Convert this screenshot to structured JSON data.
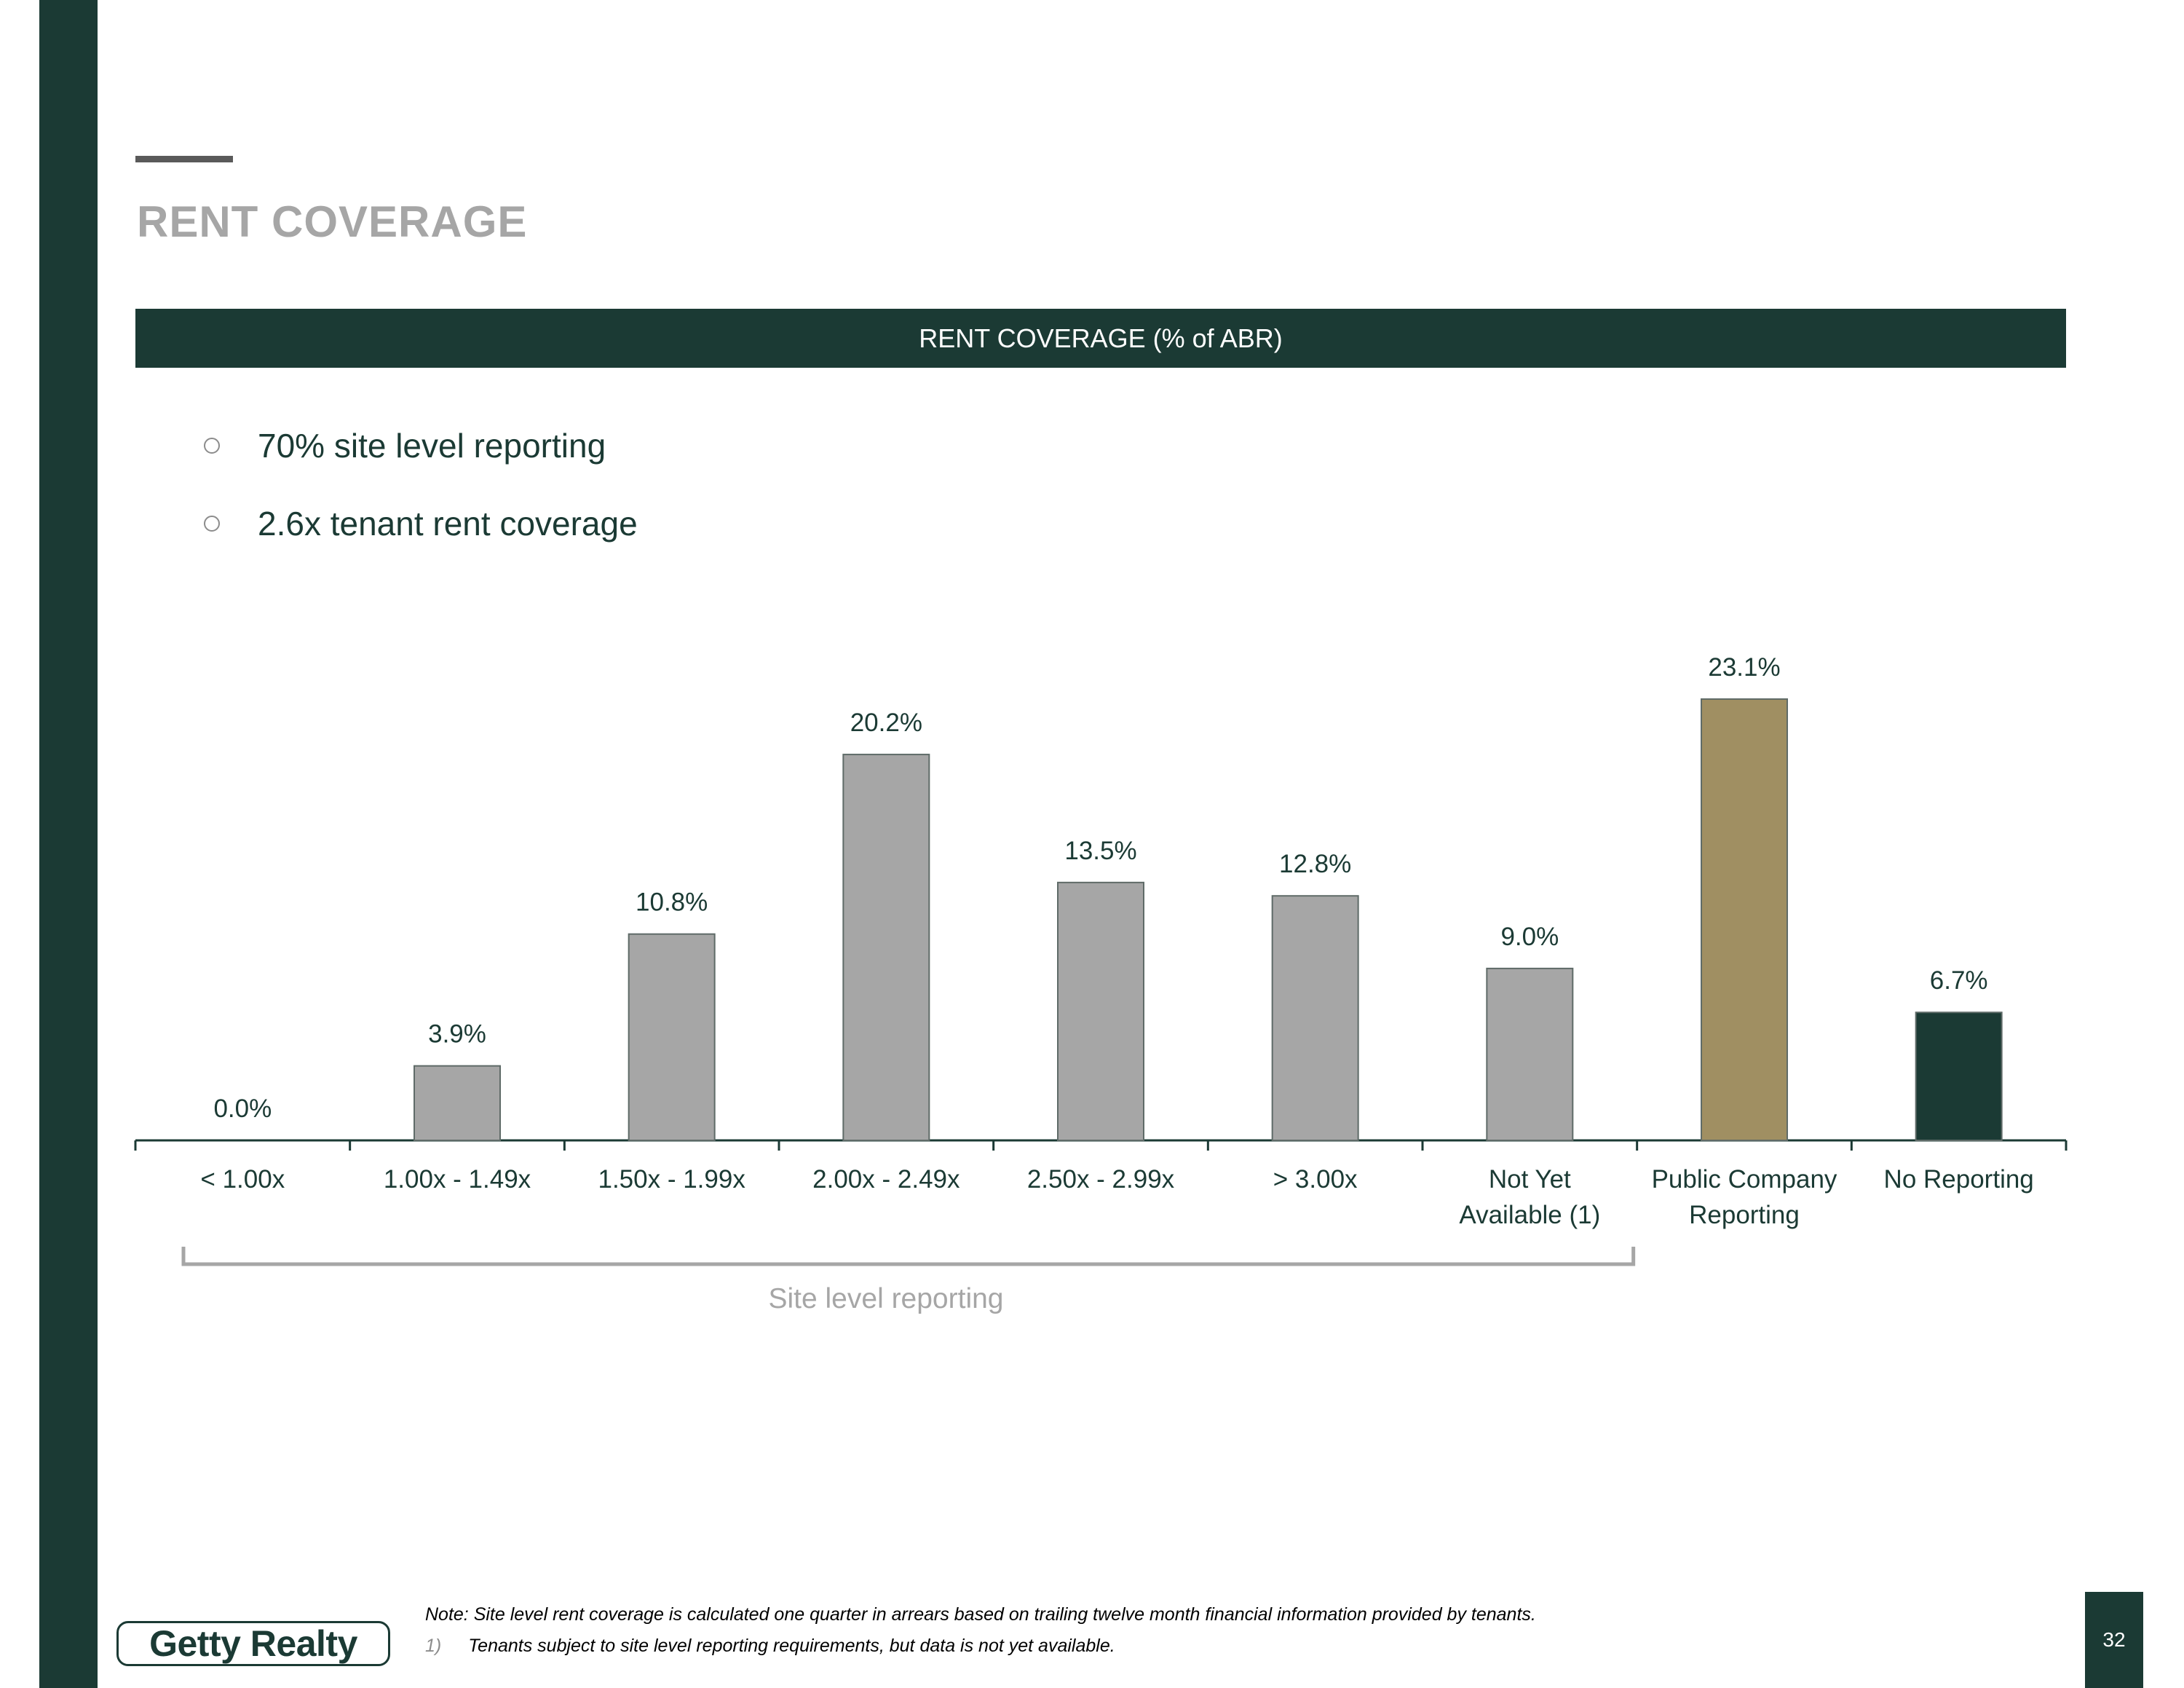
{
  "page": {
    "title": "RENT COVERAGE",
    "banner": "RENT COVERAGE (% of ABR)",
    "bullets": [
      "70% site level reporting",
      "2.6x tenant rent coverage"
    ],
    "bracket_label": "Site level reporting",
    "logo_text": "Getty Realty",
    "note": "Note: Site level rent coverage is calculated one quarter in arrears based on trailing twelve month financial information provided by tenants.",
    "footnote_number": "1)",
    "footnote_text": "Tenants subject to site level reporting requirements, but data is not yet available.",
    "page_number": "32"
  },
  "colors": {
    "brand_green": "#1b3a34",
    "bar_gray": "#a6a6a6",
    "bar_gold": "#a08f62",
    "bar_green": "#1b3a34",
    "muted_gray": "#a6a6a6"
  },
  "chart_data": {
    "type": "bar",
    "title": "RENT COVERAGE (% of ABR)",
    "xlabel": "",
    "ylabel": "",
    "ylim": [
      0,
      25
    ],
    "grid": false,
    "categories": [
      [
        "< 1.00x"
      ],
      [
        "1.00x - 1.49x"
      ],
      [
        "1.50x - 1.99x"
      ],
      [
        "2.00x - 2.49x"
      ],
      [
        "2.50x - 2.99x"
      ],
      [
        "> 3.00x"
      ],
      [
        "Not Yet",
        "Available (1)"
      ],
      [
        "Public Company",
        "Reporting"
      ],
      [
        "No Reporting"
      ]
    ],
    "values": [
      0.0,
      3.9,
      10.8,
      20.2,
      13.5,
      12.8,
      9.0,
      23.1,
      6.7
    ],
    "data_labels": [
      "0.0%",
      "3.9%",
      "10.8%",
      "20.2%",
      "13.5%",
      "12.8%",
      "9.0%",
      "23.1%",
      "6.7%"
    ],
    "bar_colors": [
      "#a6a6a6",
      "#a6a6a6",
      "#a6a6a6",
      "#a6a6a6",
      "#a6a6a6",
      "#a6a6a6",
      "#a6a6a6",
      "#a08f62",
      "#1b3a34"
    ],
    "group_bracket": {
      "label": "Site level reporting",
      "from_category": 0,
      "to_category": 6
    }
  }
}
